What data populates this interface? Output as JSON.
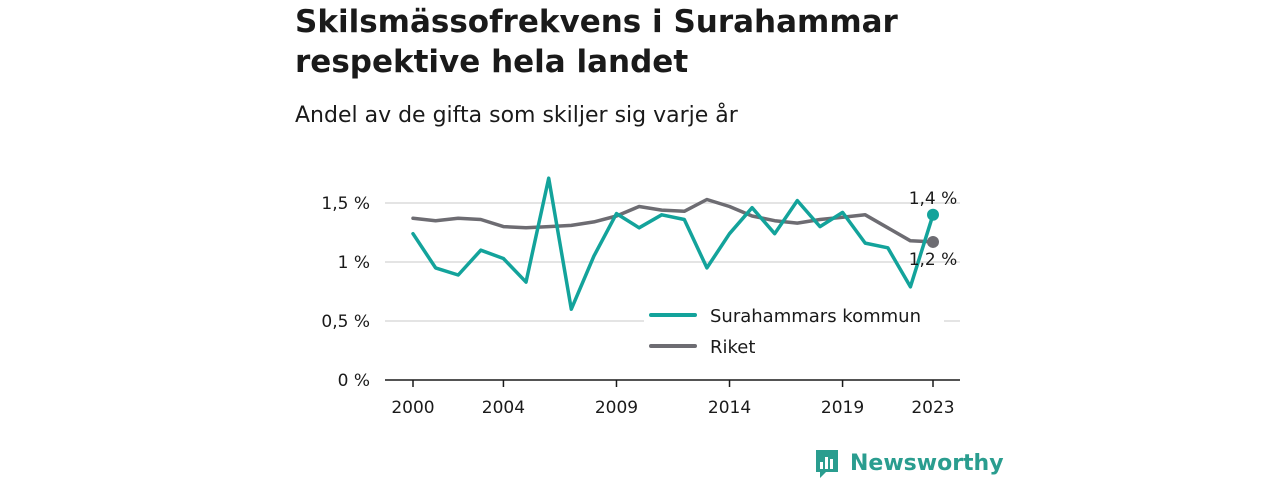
{
  "title": "Skilsmässofrekvens i Surahammar respektive hela landet",
  "subtitle": "Andel av de gifta som skiljer sig varje år",
  "colors": {
    "surahammar": "#13a39b",
    "riket": "#6d6c72",
    "grid": "#dcdcdc",
    "axis": "#1a1a1a",
    "brand": "#2a9d8f"
  },
  "brand": {
    "name": "Newsworthy",
    "icon": "bar-chart-icon"
  },
  "chart_data": {
    "type": "line",
    "title": "Skilsmässofrekvens i Surahammar respektive hela landet",
    "subtitle": "Andel av de gifta som skiljer sig varje år",
    "xlabel": "",
    "ylabel": "",
    "x": [
      2000,
      2001,
      2002,
      2003,
      2004,
      2005,
      2006,
      2007,
      2008,
      2009,
      2010,
      2011,
      2012,
      2013,
      2014,
      2015,
      2016,
      2017,
      2018,
      2019,
      2020,
      2021,
      2022,
      2023
    ],
    "x_ticks": [
      2000,
      2004,
      2009,
      2014,
      2019,
      2023
    ],
    "x_tick_labels": [
      "2000",
      "2004",
      "2009",
      "2014",
      "2019",
      "2023"
    ],
    "ylim": [
      0,
      1.8
    ],
    "y_ticks": [
      0,
      0.5,
      1,
      1.5
    ],
    "y_tick_labels": [
      "0 %",
      "0,5 %",
      "1 %",
      "1,5 %"
    ],
    "grid": "horizontal",
    "legend_position": "bottom-right",
    "series": [
      {
        "name": "Surahammars kommun",
        "color_key": "surahammar",
        "values": [
          1.24,
          0.95,
          0.89,
          1.1,
          1.03,
          0.83,
          1.71,
          0.6,
          1.05,
          1.41,
          1.29,
          1.4,
          1.36,
          0.95,
          1.24,
          1.46,
          1.24,
          1.52,
          1.3,
          1.42,
          1.16,
          1.12,
          0.79,
          1.4
        ],
        "end_label": "1,4 %"
      },
      {
        "name": "Riket",
        "color_key": "riket",
        "values": [
          1.37,
          1.35,
          1.37,
          1.36,
          1.3,
          1.29,
          1.3,
          1.31,
          1.34,
          1.39,
          1.47,
          1.44,
          1.43,
          1.53,
          1.47,
          1.39,
          1.35,
          1.33,
          1.36,
          1.38,
          1.4,
          1.29,
          1.18,
          1.17
        ],
        "end_label": "1,2 %"
      }
    ]
  }
}
